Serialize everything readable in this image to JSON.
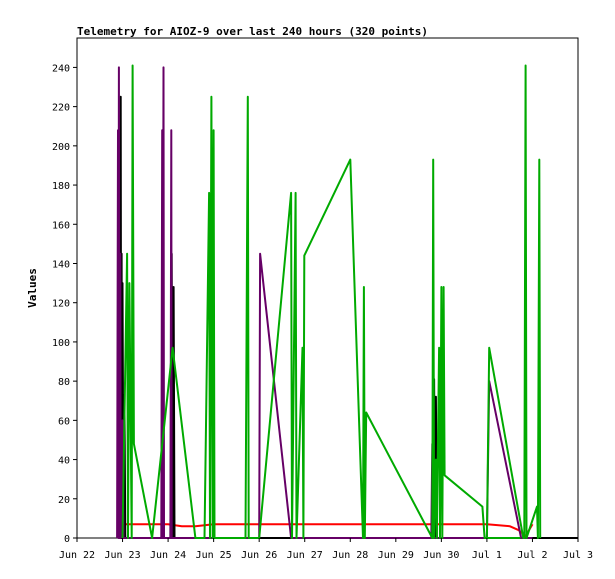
{
  "chart_data": {
    "type": "line",
    "title": "Telemetry for AIOZ-9 over last 240 hours (320 points)",
    "xlabel": "",
    "ylabel": "Values",
    "ylim": [
      0,
      255
    ],
    "xlim_days": [
      0,
      11
    ],
    "x_ticks": [
      "Jun 22",
      "Jun 23",
      "Jun 24",
      "Jun 25",
      "Jun 26",
      "Jun 27",
      "Jun 28",
      "Jun 29",
      "Jun 30",
      "Jul 1",
      "Jul 2",
      "Jul 3"
    ],
    "y_ticks": [
      0,
      20,
      40,
      60,
      80,
      100,
      120,
      140,
      160,
      180,
      200,
      220,
      240
    ],
    "grid": false,
    "legend": "none",
    "series": [
      {
        "color": "#ff0000",
        "points": [
          [
            0.9,
            6
          ],
          [
            1.0,
            7
          ],
          [
            1.5,
            7
          ],
          [
            2.0,
            7
          ],
          [
            2.3,
            6
          ],
          [
            2.6,
            6
          ],
          [
            3.0,
            7
          ],
          [
            3.5,
            7
          ],
          [
            4.0,
            7
          ],
          [
            5.0,
            7
          ],
          [
            6.0,
            7
          ],
          [
            7.0,
            7
          ],
          [
            8.0,
            7
          ],
          [
            9.0,
            7
          ],
          [
            9.5,
            6
          ],
          [
            9.7,
            4
          ],
          [
            9.85,
            1
          ],
          [
            10.0,
            7
          ]
        ]
      },
      {
        "color": "#000000",
        "points": [
          [
            0.95,
            0
          ],
          [
            0.96,
            225
          ],
          [
            0.97,
            0
          ],
          [
            0.98,
            145
          ],
          [
            0.99,
            0
          ],
          [
            1.0,
            130
          ],
          [
            1.02,
            0
          ],
          [
            1.04,
            73
          ],
          [
            1.06,
            0
          ],
          [
            2.05,
            0
          ],
          [
            2.08,
            145
          ],
          [
            2.1,
            0
          ],
          [
            2.12,
            128
          ],
          [
            2.14,
            0
          ],
          [
            7.82,
            0
          ],
          [
            7.84,
            81
          ],
          [
            7.86,
            0
          ],
          [
            7.88,
            72
          ],
          [
            7.9,
            0
          ],
          [
            11.0,
            0
          ]
        ]
      },
      {
        "color": "#660066",
        "points": [
          [
            0.88,
            0
          ],
          [
            0.9,
            208
          ],
          [
            0.91,
            0
          ],
          [
            0.92,
            240
          ],
          [
            0.93,
            0
          ],
          [
            0.95,
            145
          ],
          [
            0.96,
            0
          ],
          [
            1.0,
            60
          ],
          [
            1.02,
            0
          ],
          [
            1.85,
            0
          ],
          [
            1.87,
            208
          ],
          [
            1.88,
            0
          ],
          [
            1.9,
            240
          ],
          [
            1.91,
            0
          ],
          [
            2.05,
            0
          ],
          [
            2.07,
            208
          ],
          [
            2.08,
            0
          ],
          [
            4.0,
            0
          ],
          [
            4.02,
            145
          ],
          [
            4.7,
            0
          ],
          [
            7.78,
            0
          ],
          [
            7.8,
            48
          ],
          [
            7.82,
            0
          ],
          [
            9.0,
            0
          ],
          [
            9.05,
            80
          ],
          [
            9.75,
            0
          ],
          [
            10.0,
            0
          ]
        ]
      },
      {
        "color": "#00aa00",
        "points": [
          [
            1.0,
            0
          ],
          [
            1.1,
            145
          ],
          [
            1.12,
            0
          ],
          [
            1.15,
            130
          ],
          [
            1.2,
            0
          ],
          [
            1.22,
            241
          ],
          [
            1.25,
            48
          ],
          [
            1.65,
            0
          ],
          [
            2.1,
            97
          ],
          [
            2.6,
            0
          ],
          [
            2.8,
            0
          ],
          [
            2.9,
            176
          ],
          [
            2.92,
            0
          ],
          [
            2.95,
            225
          ],
          [
            2.98,
            0
          ],
          [
            3.0,
            208
          ],
          [
            3.02,
            0
          ],
          [
            3.7,
            0
          ],
          [
            3.75,
            225
          ],
          [
            3.77,
            0
          ],
          [
            4.0,
            0
          ],
          [
            4.7,
            176
          ],
          [
            4.72,
            0
          ],
          [
            4.8,
            176
          ],
          [
            4.82,
            0
          ],
          [
            4.95,
            97
          ],
          [
            4.97,
            0
          ],
          [
            4.99,
            144
          ],
          [
            6.0,
            193
          ],
          [
            6.28,
            0
          ],
          [
            6.3,
            128
          ],
          [
            6.32,
            0
          ],
          [
            6.35,
            64
          ],
          [
            7.8,
            0
          ],
          [
            7.82,
            193
          ],
          [
            7.84,
            0
          ],
          [
            7.88,
            40
          ],
          [
            7.9,
            0
          ],
          [
            7.95,
            97
          ],
          [
            7.97,
            0
          ],
          [
            8.0,
            128
          ],
          [
            8.02,
            0
          ],
          [
            8.05,
            128
          ],
          [
            8.07,
            32
          ],
          [
            8.9,
            16
          ],
          [
            8.95,
            0
          ],
          [
            9.7,
            0
          ],
          [
            9.72,
            0
          ],
          [
            9.0,
            0
          ],
          [
            9.05,
            97
          ],
          [
            9.8,
            0
          ],
          [
            9.82,
            0
          ],
          [
            9.85,
            241
          ],
          [
            9.87,
            0
          ],
          [
            10.1,
            16
          ],
          [
            10.12,
            0
          ],
          [
            10.15,
            193
          ],
          [
            10.17,
            0
          ]
        ]
      }
    ]
  }
}
